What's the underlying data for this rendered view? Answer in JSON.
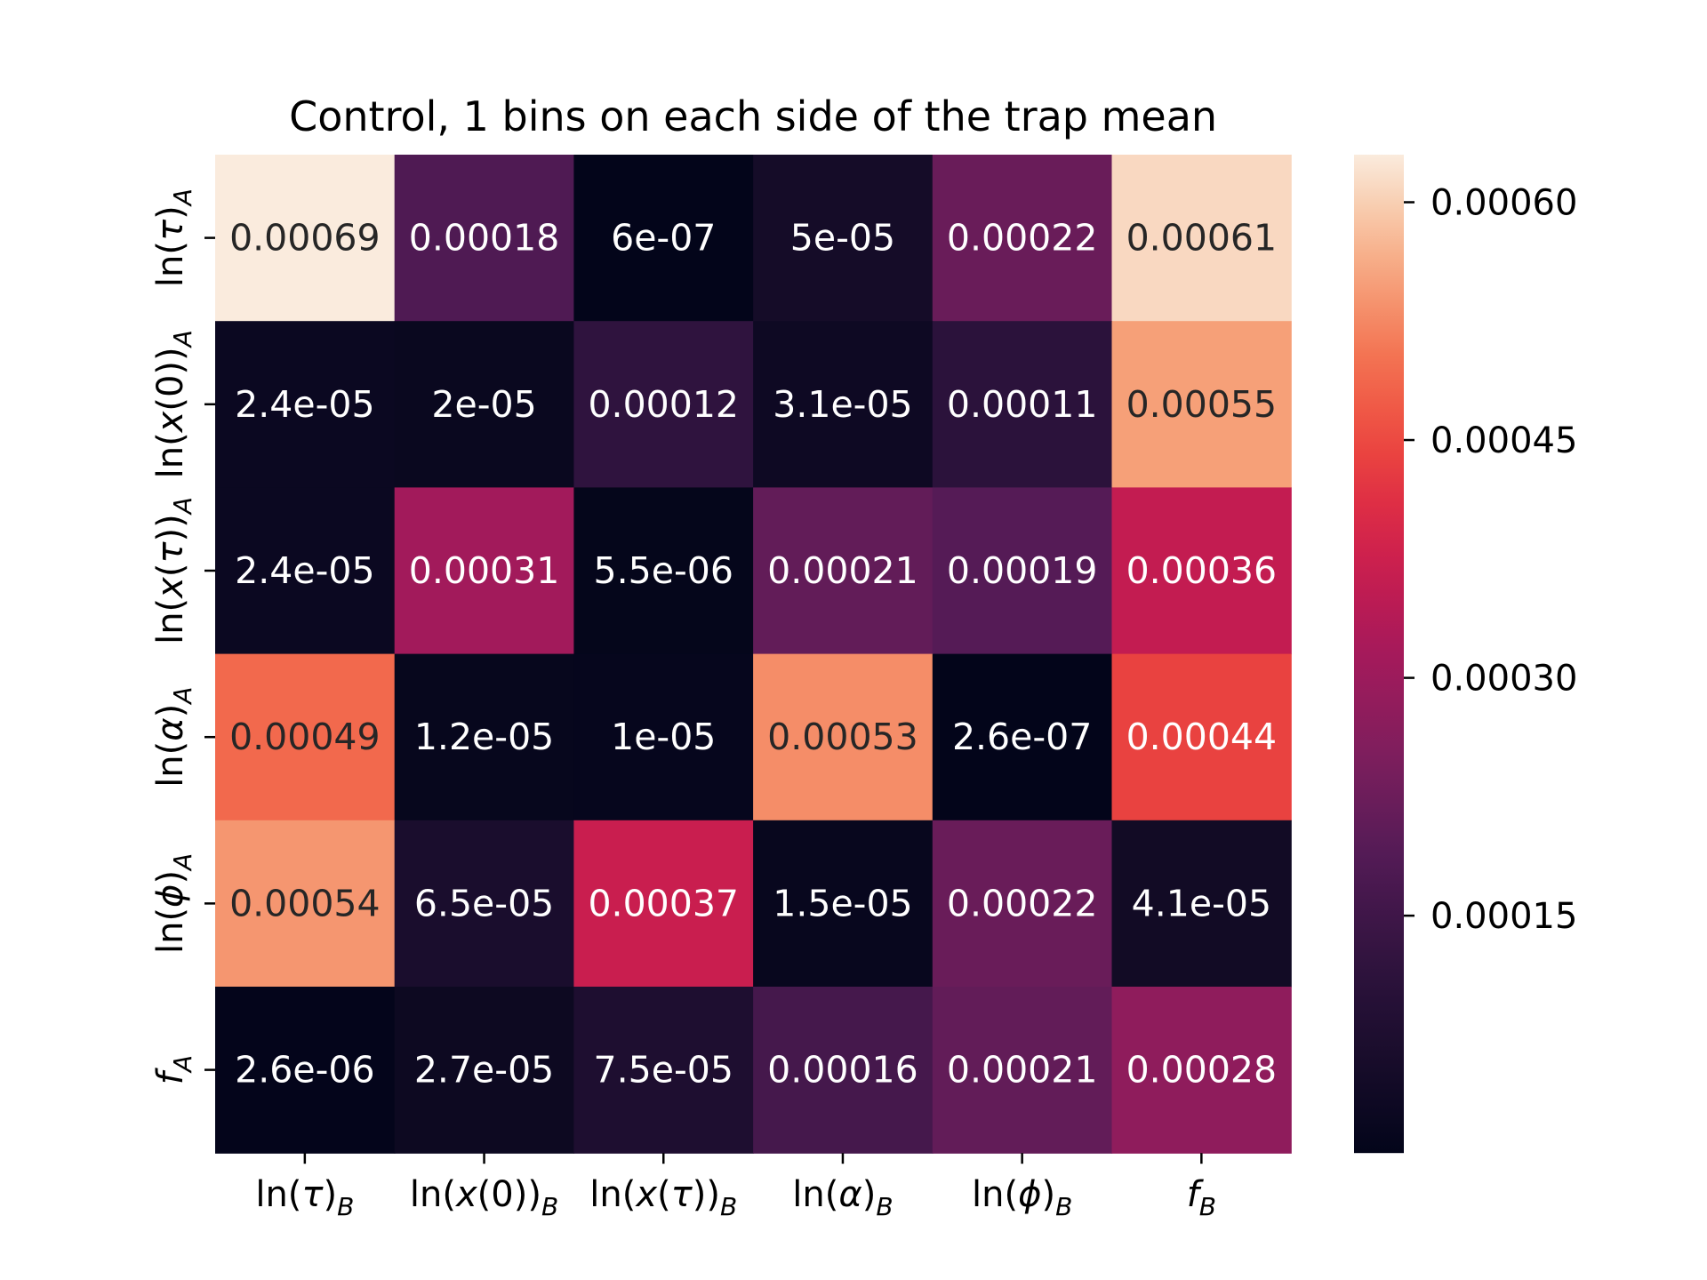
{
  "chart_data": {
    "type": "heatmap",
    "title": "Control, 1 bins on each side of the trap mean",
    "x_labels": [
      {
        "base": "ln(",
        "sym": "τ",
        "close": ")",
        "sub": "B"
      },
      {
        "base": "ln(",
        "sym": "x",
        "close": "(0))",
        "sub": "B"
      },
      {
        "base": "ln(",
        "sym": "x",
        "close": "(τ))",
        "sub": "B"
      },
      {
        "base": "ln(",
        "sym": "α",
        "close": ")",
        "sub": "B"
      },
      {
        "base": "ln(",
        "sym": "ϕ",
        "close": ")",
        "sub": "B"
      },
      {
        "base": "",
        "sym": "f",
        "close": "",
        "sub": "B"
      }
    ],
    "y_labels": [
      {
        "base": "ln(",
        "sym": "τ",
        "close": ")",
        "sub": "A"
      },
      {
        "base": "ln(",
        "sym": "x",
        "close": "(0))",
        "sub": "A"
      },
      {
        "base": "ln(",
        "sym": "x",
        "close": "(τ))",
        "sub": "A"
      },
      {
        "base": "ln(",
        "sym": "α",
        "close": ")",
        "sub": "A"
      },
      {
        "base": "ln(",
        "sym": "ϕ",
        "close": ")",
        "sub": "A"
      },
      {
        "base": "",
        "sym": "f",
        "close": "",
        "sub": "A"
      }
    ],
    "values": [
      [
        0.00069,
        0.00018,
        6e-07,
        5e-05,
        0.00022,
        0.00061
      ],
      [
        2.4e-05,
        2e-05,
        0.00012,
        3.1e-05,
        0.00011,
        0.00055
      ],
      [
        2.4e-05,
        0.00031,
        5.5e-06,
        0.00021,
        0.00019,
        0.00036
      ],
      [
        0.00049,
        1.2e-05,
        1e-05,
        0.00053,
        2.6e-07,
        0.00044
      ],
      [
        0.00054,
        6.5e-05,
        0.00037,
        1.5e-05,
        0.00022,
        4.1e-05
      ],
      [
        2.6e-06,
        2.7e-05,
        7.5e-05,
        0.00016,
        0.00021,
        0.00028
      ]
    ],
    "annotations": [
      [
        "0.00069",
        "0.00018",
        "6e-07",
        "5e-05",
        "0.00022",
        "0.00061"
      ],
      [
        "2.4e-05",
        "2e-05",
        "0.00012",
        "3.1e-05",
        "0.00011",
        "0.00055"
      ],
      [
        "2.4e-05",
        "0.00031",
        "5.5e-06",
        "0.00021",
        "0.00019",
        "0.00036"
      ],
      [
        "0.00049",
        "1.2e-05",
        "1e-05",
        "0.00053",
        "2.6e-07",
        "0.00044"
      ],
      [
        "0.00054",
        "6.5e-05",
        "0.00037",
        "1.5e-05",
        "0.00022",
        "4.1e-05"
      ],
      [
        "2.6e-06",
        "2.7e-05",
        "7.5e-05",
        "0.00016",
        "0.00021",
        "0.00028"
      ]
    ],
    "colormap": "rocket",
    "color_range": [
      2.6e-07,
      0.00063
    ],
    "colorbar_ticks": [
      {
        "value": 0.00015,
        "label": "0.00015"
      },
      {
        "value": 0.0003,
        "label": "0.00030"
      },
      {
        "value": 0.00045,
        "label": "0.00045"
      },
      {
        "value": 0.0006,
        "label": "0.00060"
      }
    ],
    "colorbar_position": "right"
  }
}
